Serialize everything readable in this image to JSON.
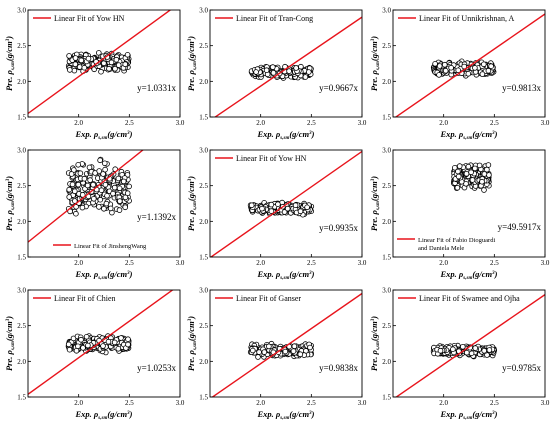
{
  "figure": {
    "axis_labels": {
      "x_prefix": "Exp. ρ",
      "x_sub": "s,sm",
      "x_suffix": "(g/cm",
      "x_sup": "3",
      "x_close": ")",
      "y_prefix": "Pre. ρ",
      "y_sub": "s,sm",
      "y_suffix": "(g/cm",
      "y_sup": "3",
      "y_close": ")"
    },
    "line_color": "#e8141c",
    "marker": "hollow-circle"
  },
  "chart_data": [
    {
      "type": "scatter",
      "legend": [
        "Linear Fit of Yow HN"
      ],
      "legend_position": "top-left",
      "equation": "y=1.0331x",
      "slope": 1.0331,
      "xlim": [
        1.5,
        3.0
      ],
      "ylim": [
        1.5,
        3.0
      ],
      "xticks": [
        "2.0",
        "2.5",
        "3.0"
      ],
      "yticks": [
        "1.5",
        "2.0",
        "2.5",
        "3.0"
      ],
      "cloud": {
        "x_range": [
          1.9,
          2.5
        ],
        "y_center": 2.27,
        "y_spread": 0.1
      }
    },
    {
      "type": "scatter",
      "legend": [
        "Linear Fit of Tran-Cong"
      ],
      "legend_position": "top-left",
      "equation": "y=0.9667x",
      "slope": 0.9667,
      "xlim": [
        1.5,
        3.0
      ],
      "ylim": [
        1.5,
        3.0
      ],
      "xticks": [
        "2.0",
        "2.5",
        "3.0"
      ],
      "yticks": [
        "1.5",
        "2.0",
        "2.5",
        "3.0"
      ],
      "cloud": {
        "x_range": [
          1.9,
          2.5
        ],
        "y_center": 2.13,
        "y_spread": 0.06
      }
    },
    {
      "type": "scatter",
      "legend": [
        "Linear Fit of Unnikrishnan, A"
      ],
      "legend_position": "top-left",
      "equation": "y=0.9813x",
      "slope": 0.9813,
      "xlim": [
        1.5,
        3.0
      ],
      "ylim": [
        1.5,
        3.0
      ],
      "xticks": [
        "2.0",
        "2.5",
        "3.0"
      ],
      "yticks": [
        "1.5",
        "2.0",
        "2.5",
        "3.0"
      ],
      "cloud": {
        "x_range": [
          1.9,
          2.5
        ],
        "y_center": 2.17,
        "y_spread": 0.08
      }
    },
    {
      "type": "scatter",
      "legend": [
        "Linear Fit of JinshengWang"
      ],
      "legend_position": "bottom-right",
      "equation": "y=1.1392x",
      "slope": 1.1392,
      "xlim": [
        1.5,
        3.0
      ],
      "ylim": [
        1.5,
        3.0
      ],
      "xticks": [
        "2.0",
        "2.5",
        "3.0"
      ],
      "yticks": [
        "1.5",
        "2.0",
        "2.5",
        "3.0"
      ],
      "cloud": {
        "x_range": [
          1.9,
          2.5
        ],
        "y_center": 2.45,
        "y_spread": 0.3
      }
    },
    {
      "type": "scatter",
      "legend": [
        "Linear Fit of Yow HN"
      ],
      "legend_position": "top-left",
      "equation": "y=0.9935x",
      "slope": 0.9935,
      "xlim": [
        1.5,
        3.0
      ],
      "ylim": [
        1.5,
        3.0
      ],
      "xticks": [
        "2.0",
        "2.5",
        "3.0"
      ],
      "yticks": [
        "1.5",
        "2.0",
        "2.5",
        "3.0"
      ],
      "cloud": {
        "x_range": [
          1.9,
          2.5
        ],
        "y_center": 2.18,
        "y_spread": 0.07
      }
    },
    {
      "type": "scatter",
      "legend": [
        "Linear Fit of Fabio Dioguardi",
        "and Daniela Mele"
      ],
      "legend_position": "bottom-left",
      "equation": "y=49.5917x",
      "slope": 49.5917,
      "xlim": [
        1.5,
        3.0
      ],
      "ylim": [
        1.5,
        3.0
      ],
      "xticks": [
        "2.0",
        "2.5",
        "3.0"
      ],
      "yticks": [
        "1.5",
        "2.0",
        "2.5",
        "3.0"
      ],
      "cloud": {
        "x_range": [
          2.1,
          2.45
        ],
        "y_center": 2.62,
        "y_spread": 0.13
      }
    },
    {
      "type": "scatter",
      "legend": [
        "Linear Fit of Chien"
      ],
      "legend_position": "top-left",
      "equation": "y=1.0253x",
      "slope": 1.0253,
      "xlim": [
        1.5,
        3.0
      ],
      "ylim": [
        1.5,
        3.0
      ],
      "xticks": [
        "2.0",
        "2.5",
        "3.0"
      ],
      "yticks": [
        "1.5",
        "2.0",
        "2.5",
        "3.0"
      ],
      "cloud": {
        "x_range": [
          1.9,
          2.5
        ],
        "y_center": 2.25,
        "y_spread": 0.09
      }
    },
    {
      "type": "scatter",
      "legend": [
        "Linear Fit of Ganser"
      ],
      "legend_position": "top-left",
      "equation": "y=0.9838x",
      "slope": 0.9838,
      "xlim": [
        1.5,
        3.0
      ],
      "ylim": [
        1.5,
        3.0
      ],
      "xticks": [
        "2.0",
        "2.5",
        "3.0"
      ],
      "yticks": [
        "1.5",
        "2.0",
        "2.5",
        "3.0"
      ],
      "cloud": {
        "x_range": [
          1.9,
          2.5
        ],
        "y_center": 2.15,
        "y_spread": 0.07
      }
    },
    {
      "type": "scatter",
      "legend": [
        "Linear Fit of Swamee and Ojha"
      ],
      "legend_position": "top-left",
      "equation": "y=0.9785x",
      "slope": 0.9785,
      "xlim": [
        1.5,
        3.0
      ],
      "ylim": [
        1.5,
        3.0
      ],
      "xticks": [
        "2.0",
        "2.5",
        "3.0"
      ],
      "yticks": [
        "1.5",
        "2.0",
        "2.5",
        "3.0"
      ],
      "cloud": {
        "x_range": [
          1.9,
          2.5
        ],
        "y_center": 2.15,
        "y_spread": 0.06
      }
    }
  ]
}
